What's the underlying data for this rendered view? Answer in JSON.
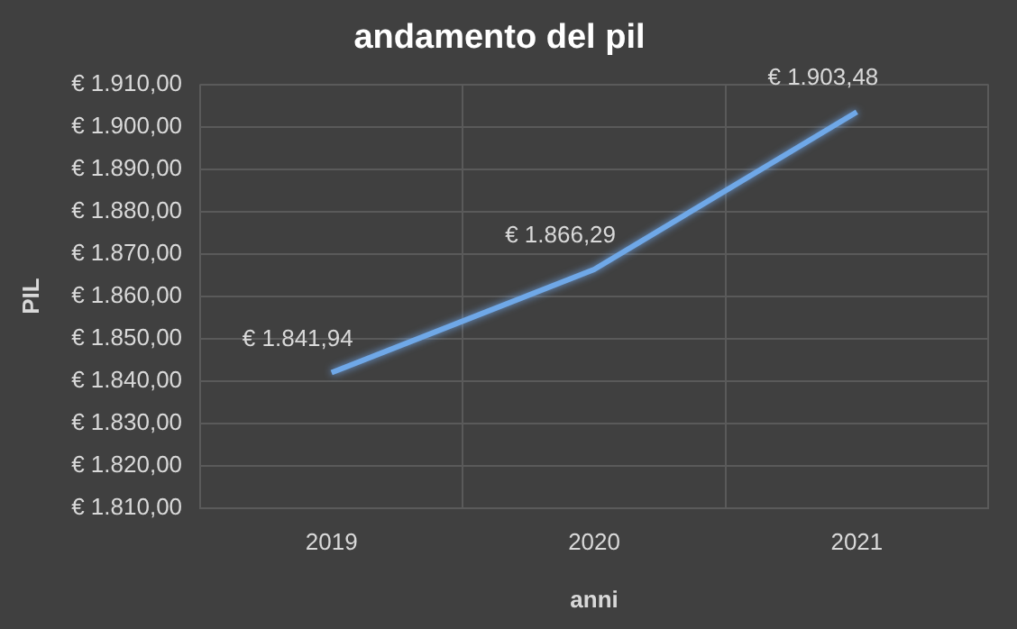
{
  "chart_data": {
    "type": "line",
    "title": "andamento del pil",
    "xlabel": "anni",
    "ylabel": "PIL",
    "categories": [
      "2019",
      "2020",
      "2021"
    ],
    "series": [
      {
        "color": "#6fa8e8",
        "values": [
          1841.94,
          1866.29,
          1903.48
        ],
        "value_labels": [
          "€ 1.841,94",
          "€ 1.866,29",
          "€ 1.903,48"
        ]
      }
    ],
    "ylim": [
      1810,
      1910
    ],
    "yticks": [
      {
        "value": 1810,
        "label": "€ 1.810,00"
      },
      {
        "value": 1820,
        "label": "€ 1.820,00"
      },
      {
        "value": 1830,
        "label": "€ 1.830,00"
      },
      {
        "value": 1840,
        "label": "€ 1.840,00"
      },
      {
        "value": 1850,
        "label": "€ 1.850,00"
      },
      {
        "value": 1860,
        "label": "€ 1.860,00"
      },
      {
        "value": 1870,
        "label": "€ 1.870,00"
      },
      {
        "value": 1880,
        "label": "€ 1.880,00"
      },
      {
        "value": 1890,
        "label": "€ 1.890,00"
      },
      {
        "value": 1900,
        "label": "€ 1.900,00"
      },
      {
        "value": 1910,
        "label": "€ 1.910,00"
      }
    ],
    "grid": true,
    "legend": false,
    "marker": "none",
    "line_style": "solid"
  }
}
